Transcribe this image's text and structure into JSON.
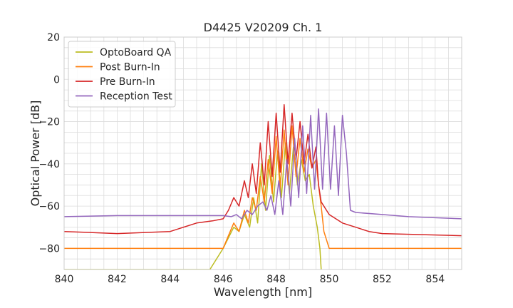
{
  "chart_data": {
    "type": "line",
    "title": "D4425 V20209 Ch. 1",
    "xlabel": "Wavelength [nm]",
    "ylabel": "Optical Power [dB]",
    "xlim": [
      840,
      855
    ],
    "ylim": [
      -90,
      20
    ],
    "xticks": [
      840,
      842,
      844,
      846,
      848,
      850,
      852,
      854
    ],
    "yticks": [
      -80,
      -60,
      -40,
      -20,
      0,
      20
    ],
    "grid": true,
    "legend_position": "top-left",
    "series": [
      {
        "name": "OptoBoard QA",
        "color": "#bcbd22",
        "x": [
          840.0,
          845.5,
          846.0,
          846.2,
          846.4,
          846.6,
          846.8,
          847.0,
          847.15,
          847.3,
          847.45,
          847.6,
          847.75,
          847.9,
          848.05,
          848.2,
          848.35,
          848.5,
          848.65,
          848.8,
          848.95,
          849.1,
          849.25,
          849.4,
          849.55,
          849.65,
          849.7
        ],
        "values": [
          -90,
          -90,
          -80,
          -75,
          -70,
          -72,
          -64,
          -70,
          -56,
          -68,
          -40,
          -62,
          -36,
          -58,
          -34,
          -56,
          -30,
          -54,
          -32,
          -50,
          -38,
          -48,
          -45,
          -60,
          -70,
          -80,
          -90
        ]
      },
      {
        "name": "Post Burn-In",
        "color": "#ff7f0e",
        "x": [
          840.0,
          846.0,
          846.2,
          846.4,
          846.6,
          846.8,
          846.95,
          847.1,
          847.25,
          847.4,
          847.55,
          847.7,
          847.85,
          848.0,
          848.15,
          848.3,
          848.45,
          848.6,
          848.75,
          848.9,
          849.05,
          849.2,
          849.35,
          849.5,
          849.6,
          849.7,
          849.8,
          850.0,
          855.0
        ],
        "values": [
          -80,
          -80,
          -74,
          -68,
          -72,
          -62,
          -68,
          -56,
          -62,
          -46,
          -58,
          -38,
          -54,
          -27,
          -52,
          -24,
          -50,
          -22,
          -46,
          -28,
          -44,
          -33,
          -42,
          -38,
          -50,
          -60,
          -72,
          -80,
          -80
        ]
      },
      {
        "name": "Pre Burn-In",
        "color": "#d62728",
        "x": [
          840.0,
          842.0,
          844.0,
          845.0,
          845.6,
          846.0,
          846.2,
          846.4,
          846.6,
          846.8,
          846.95,
          847.1,
          847.25,
          847.4,
          847.55,
          847.7,
          847.85,
          848.0,
          848.15,
          848.3,
          848.45,
          848.6,
          848.75,
          848.9,
          849.05,
          849.2,
          849.35,
          849.5,
          849.6,
          849.7,
          850.0,
          850.5,
          851.0,
          851.5,
          852.0,
          855.0
        ],
        "values": [
          -72,
          -73,
          -72,
          -68,
          -67,
          -66,
          -62,
          -56,
          -60,
          -48,
          -56,
          -40,
          -54,
          -30,
          -50,
          -20,
          -46,
          -16,
          -44,
          -12,
          -40,
          -16,
          -38,
          -20,
          -40,
          -26,
          -42,
          -32,
          -50,
          -58,
          -64,
          -68,
          -70,
          -72,
          -73,
          -74
        ]
      },
      {
        "name": "Reception Test",
        "color": "#9467bd",
        "x": [
          840.0,
          842.0,
          844.0,
          845.0,
          845.5,
          846.0,
          846.3,
          846.5,
          846.7,
          846.9,
          847.1,
          847.3,
          847.5,
          847.65,
          847.8,
          847.95,
          848.1,
          848.25,
          848.4,
          848.55,
          848.7,
          848.85,
          849.0,
          849.15,
          849.3,
          849.45,
          849.6,
          849.75,
          849.9,
          850.05,
          850.2,
          850.35,
          850.5,
          850.65,
          850.8,
          851.0,
          852.0,
          853.0,
          854.0,
          855.0
        ],
        "values": [
          -65,
          -64.5,
          -64.5,
          -64.5,
          -64.5,
          -64.5,
          -65,
          -64,
          -66,
          -62,
          -64,
          -60,
          -58,
          -62,
          -55,
          -64,
          -48,
          -64,
          -38,
          -60,
          -28,
          -56,
          -22,
          -54,
          -17,
          -52,
          -14,
          -52,
          -16,
          -52,
          -22,
          -55,
          -17,
          -35,
          -62,
          -63,
          -64,
          -65,
          -65.5,
          -66
        ]
      }
    ]
  }
}
